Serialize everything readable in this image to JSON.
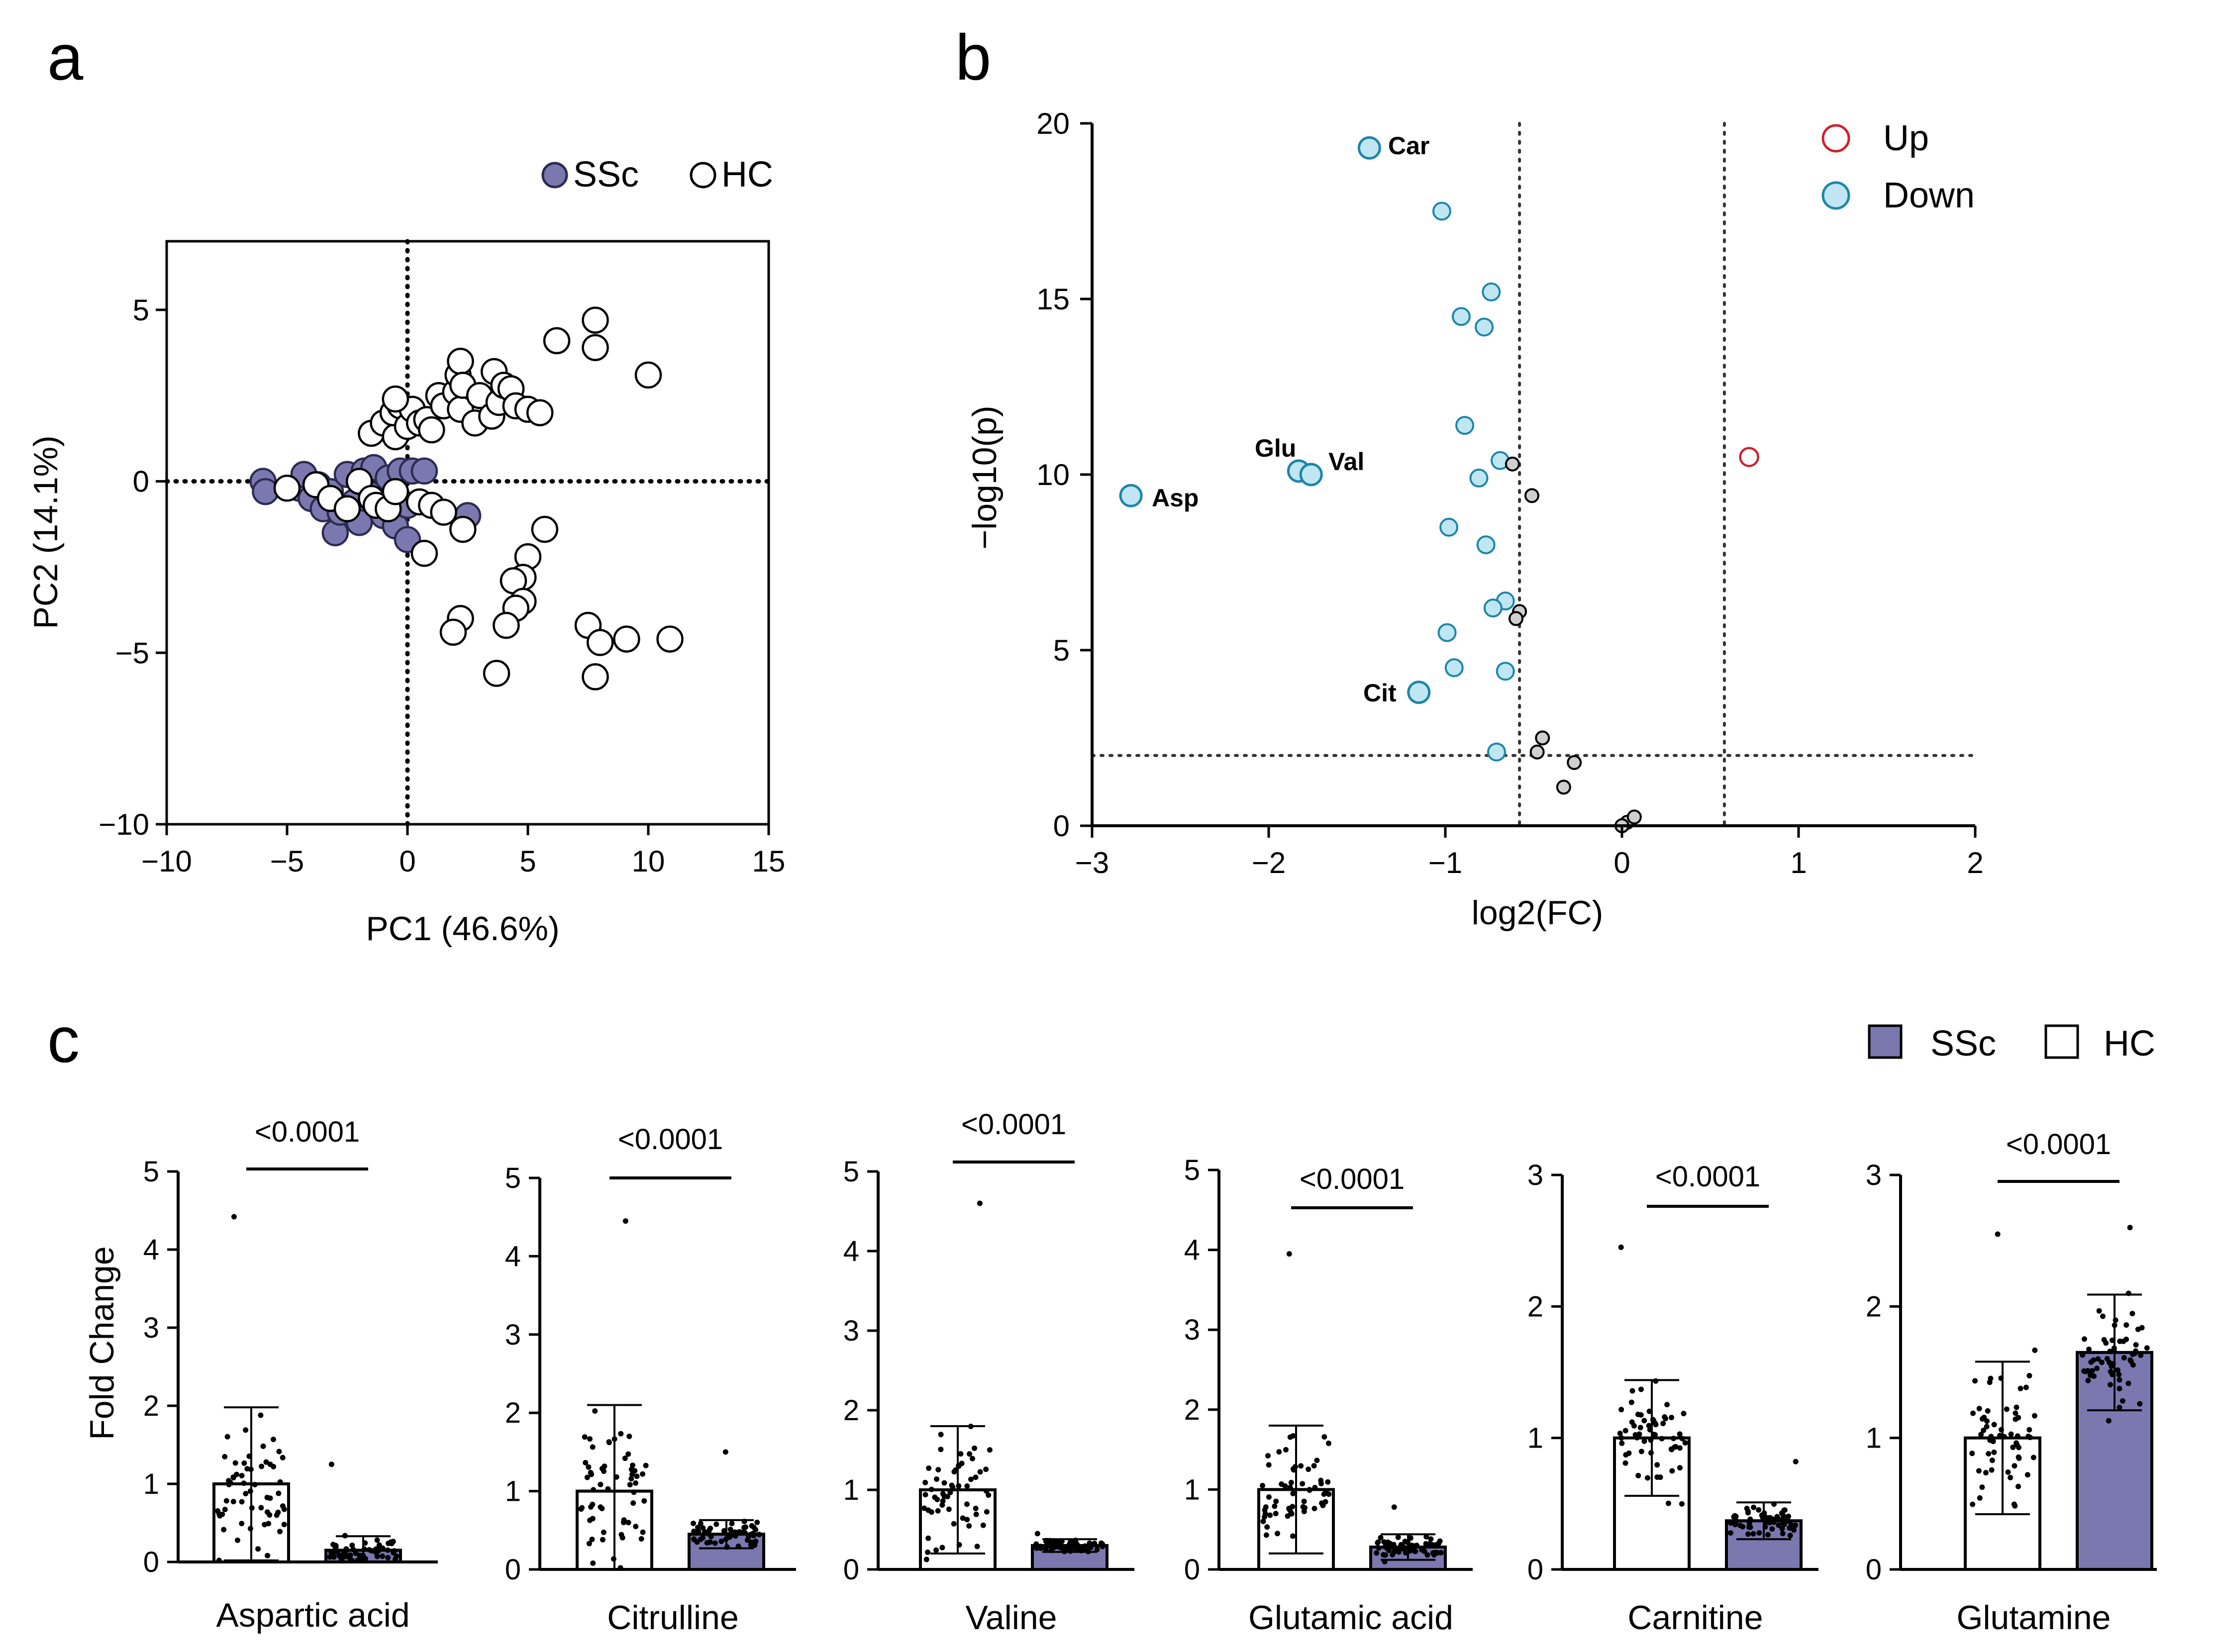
{
  "panel_labels": [
    "a",
    "b",
    "c"
  ],
  "colors": {
    "ssc": "#7b78b0",
    "ssc_stroke": "#2b2b50",
    "hc": "#ffffff",
    "up": "#d0202a",
    "down_fill": "#bfe6f2",
    "down_stroke": "#1d86a8",
    "ns_fill": "#cfcfcf"
  },
  "chart_data": [
    {
      "id": "pca",
      "type": "scatter",
      "title": "",
      "xlabel": "PC1 (46.6%)",
      "ylabel": "PC2 (14.1%)",
      "xlim": [
        -10,
        15
      ],
      "ylim": [
        -10,
        7
      ],
      "xticks": [
        -10,
        -5,
        0,
        5,
        10,
        15
      ],
      "yticks": [
        -10,
        -5,
        0,
        5
      ],
      "tick_labels_x": [
        "−10",
        "−5",
        "0",
        "5",
        "10",
        "15"
      ],
      "tick_labels_y": [
        "−10",
        "−5",
        "0",
        "5"
      ],
      "legend": [
        "SSc",
        "HC"
      ],
      "legend_position": "top-right",
      "reference_lines": {
        "x": 0,
        "y": 0
      },
      "series": [
        {
          "name": "SSc",
          "points": [
            [
              -6,
              0
            ],
            [
              -5.9,
              -0.3
            ],
            [
              -4.5,
              -0.2
            ],
            [
              -4.3,
              0.2
            ],
            [
              -4,
              -0.5
            ],
            [
              -3.7,
              -0.1
            ],
            [
              -3.5,
              -0.8
            ],
            [
              -3.2,
              -0.3
            ],
            [
              -3,
              -1.5
            ],
            [
              -2.8,
              -0.9
            ],
            [
              -2.5,
              0.2
            ],
            [
              -2.2,
              -0.6
            ],
            [
              -2,
              -1.2
            ],
            [
              -1.8,
              0.3
            ],
            [
              -1.5,
              -0.4
            ],
            [
              -1.4,
              0.4
            ],
            [
              -1,
              -1
            ],
            [
              -0.8,
              0.1
            ],
            [
              -0.5,
              -1.3
            ],
            [
              -0.3,
              0.3
            ],
            [
              0,
              -0.7
            ],
            [
              0.2,
              0.3
            ],
            [
              0,
              -1.7
            ],
            [
              0.7,
              0.3
            ],
            [
              2.5,
              -1
            ]
          ]
        },
        {
          "name": "HC",
          "points": [
            [
              -5,
              -0.2
            ],
            [
              -3.8,
              -0.1
            ],
            [
              -3.2,
              -0.5
            ],
            [
              -2.5,
              -0.8
            ],
            [
              -2,
              0
            ],
            [
              -1.5,
              -0.5
            ],
            [
              -1.3,
              -0.7
            ],
            [
              -0.8,
              -0.8
            ],
            [
              -0.5,
              -0.3
            ],
            [
              -1.5,
              1.4
            ],
            [
              -1,
              1.7
            ],
            [
              -0.5,
              1.3
            ],
            [
              -0.6,
              2
            ],
            [
              -0.3,
              2.2
            ],
            [
              0,
              1.6
            ],
            [
              0.2,
              2.1
            ],
            [
              0.5,
              1.7
            ],
            [
              0.8,
              1.8
            ],
            [
              1,
              1.5
            ],
            [
              -0.5,
              2.4
            ],
            [
              1.3,
              2.5
            ],
            [
              1.5,
              2.2
            ],
            [
              2,
              2.6
            ],
            [
              2.2,
              2.1
            ],
            [
              2.1,
              3.1
            ],
            [
              2.2,
              3.5
            ],
            [
              2.3,
              2.8
            ],
            [
              2.8,
              1.7
            ],
            [
              3,
              2.5
            ],
            [
              3.5,
              1.9
            ],
            [
              3.8,
              2.3
            ],
            [
              3.6,
              3.2
            ],
            [
              4,
              2.8
            ],
            [
              4.3,
              2.7
            ],
            [
              4.5,
              2.2
            ],
            [
              5,
              2.1
            ],
            [
              5.5,
              2
            ],
            [
              6.2,
              4.1
            ],
            [
              7.8,
              4.7
            ],
            [
              7.8,
              3.9
            ],
            [
              10,
              3.1
            ],
            [
              0.5,
              -0.6
            ],
            [
              1,
              -0.7
            ],
            [
              1.5,
              -0.9
            ],
            [
              0.7,
              -2.1
            ],
            [
              2.3,
              -1.4
            ],
            [
              5.7,
              -1.4
            ],
            [
              5,
              -2.2
            ],
            [
              4.8,
              -2.8
            ],
            [
              4.4,
              -2.9
            ],
            [
              4.8,
              -3.5
            ],
            [
              4.5,
              -3.7
            ],
            [
              4.1,
              -4.2
            ],
            [
              2.2,
              -4
            ],
            [
              1.9,
              -4.4
            ],
            [
              3.7,
              -5.6
            ],
            [
              7.5,
              -4.2
            ],
            [
              8,
              -4.7
            ],
            [
              9.1,
              -4.6
            ],
            [
              7.8,
              -5.7
            ],
            [
              10.9,
              -4.6
            ]
          ]
        }
      ]
    },
    {
      "id": "volcano",
      "type": "scatter",
      "title": "",
      "xlabel": "log2(FC)",
      "ylabel": "−log10(p)",
      "xlim": [
        -3,
        2
      ],
      "ylim": [
        0,
        20
      ],
      "xticks": [
        -3,
        -2,
        -1,
        0,
        1,
        2
      ],
      "yticks": [
        0,
        5,
        10,
        15,
        20
      ],
      "tick_labels_x": [
        "−3",
        "−2",
        "−1",
        "0",
        "1",
        "2"
      ],
      "tick_labels_y": [
        "0",
        "5",
        "10",
        "15",
        "20"
      ],
      "legend": [
        "Up",
        "Down"
      ],
      "legend_position": "top-right",
      "thresholds": {
        "x": [
          -0.58,
          0.58
        ],
        "y": 2
      },
      "series": [
        {
          "name": "Up",
          "points": [
            [
              0.72,
              10.5
            ]
          ]
        },
        {
          "name": "Down",
          "points": [
            [
              -1.43,
              19.3
            ],
            [
              -1.02,
              17.5
            ],
            [
              -0.74,
              15.2
            ],
            [
              -0.91,
              14.5
            ],
            [
              -0.78,
              14.2
            ],
            [
              -0.89,
              11.4
            ],
            [
              -0.69,
              10.4
            ],
            [
              -0.81,
              9.9
            ],
            [
              -0.98,
              8.5
            ],
            [
              -0.77,
              8
            ],
            [
              -0.66,
              6.4
            ],
            [
              -0.73,
              6.2
            ],
            [
              -0.99,
              5.5
            ],
            [
              -0.95,
              4.5
            ],
            [
              -0.66,
              4.4
            ],
            [
              -0.71,
              2.1
            ]
          ]
        },
        {
          "name": "Not significant",
          "points": [
            [
              -0.62,
              10.3
            ],
            [
              -0.51,
              9.4
            ],
            [
              -0.58,
              6.1
            ],
            [
              -0.6,
              5.9
            ],
            [
              -0.45,
              2.5
            ],
            [
              -0.48,
              2.1
            ],
            [
              -0.27,
              1.8
            ],
            [
              -0.33,
              1.1
            ],
            [
              0.03,
              0.1
            ],
            [
              0,
              0
            ],
            [
              0.07,
              0.25
            ]
          ]
        },
        {
          "name": "Labeled",
          "points": [
            [
              -1.43,
              19.3
            ],
            [
              -1.83,
              10.1
            ],
            [
              -1.76,
              10
            ],
            [
              -2.78,
              9.4
            ],
            [
              -1.15,
              3.8
            ]
          ]
        }
      ],
      "annotations": [
        "Car",
        "Glu",
        "Val",
        "Asp",
        "Cit"
      ]
    },
    {
      "id": "bars",
      "type": "bar",
      "ylabel": "Fold Change",
      "legend": [
        "SSc",
        "HC"
      ],
      "legend_position": "top-right",
      "groups": [
        "HC",
        "SSc"
      ],
      "subplots": [
        {
          "name": "Aspartic acid",
          "ylim": [
            0,
            5
          ],
          "yticks": [
            "0",
            "1",
            "2",
            "3",
            "4",
            "5"
          ],
          "p_label": "<0.0001",
          "values": [
            1.0,
            0.15
          ],
          "sd": [
            0.98,
            0.18
          ],
          "max_points": [
            4.42,
            1.25
          ]
        },
        {
          "name": "Citrulline",
          "ylim": [
            0,
            5
          ],
          "yticks": [
            "0",
            "1",
            "2",
            "3",
            "4",
            "5"
          ],
          "p_label": "<0.0001",
          "values": [
            1.0,
            0.45
          ],
          "sd": [
            1.1,
            0.18
          ],
          "max_points": [
            4.45,
            1.5
          ]
        },
        {
          "name": "Valine",
          "ylim": [
            0,
            5
          ],
          "yticks": [
            "0",
            "1",
            "2",
            "3",
            "4",
            "5"
          ],
          "p_label": "<0.0001",
          "values": [
            1.0,
            0.3
          ],
          "sd": [
            0.8,
            0.08
          ],
          "max_points": [
            4.6,
            0.45
          ]
        },
        {
          "name": "Glutamic acid",
          "ylim": [
            0,
            5
          ],
          "yticks": [
            "0",
            "1",
            "2",
            "3",
            "4",
            "5"
          ],
          "p_label": "<0.0001",
          "values": [
            1.0,
            0.28
          ],
          "sd": [
            0.8,
            0.16
          ],
          "max_points": [
            3.95,
            0.78
          ]
        },
        {
          "name": "Carnitine",
          "ylim": [
            0,
            3
          ],
          "yticks": [
            "0",
            "1",
            "2",
            "3"
          ],
          "p_label": "<0.0001",
          "values": [
            1.0,
            0.37
          ],
          "sd": [
            0.44,
            0.14
          ],
          "max_points": [
            2.45,
            0.82
          ]
        },
        {
          "name": "Glutamine",
          "ylim": [
            0,
            3
          ],
          "yticks": [
            "0",
            "1",
            "2",
            "3"
          ],
          "p_label": "<0.0001",
          "values": [
            1.0,
            1.65
          ],
          "sd": [
            0.58,
            0.44
          ],
          "max_points": [
            2.55,
            2.6
          ]
        }
      ]
    }
  ]
}
